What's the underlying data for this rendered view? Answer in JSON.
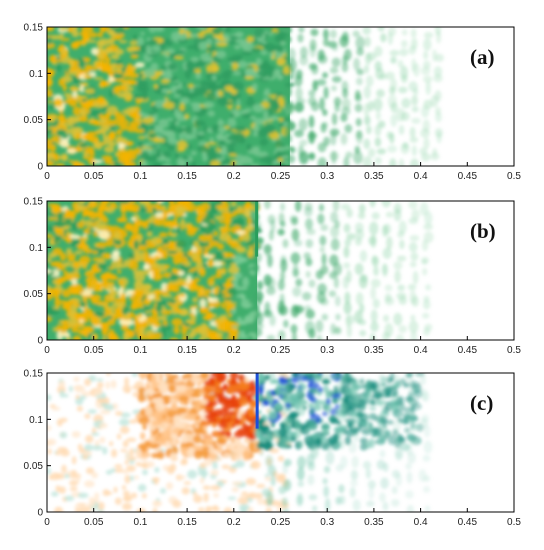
{
  "chart_data": [
    {
      "type": "heatmap",
      "panel_label": "(a)",
      "xlim": [
        0,
        0.5
      ],
      "ylim": [
        0,
        0.15
      ],
      "x_ticks": [
        "0",
        "0.05",
        "0.1",
        "0.15",
        "0.2",
        "0.25",
        "0.3",
        "0.35",
        "0.4",
        "0.45",
        "0.5"
      ],
      "y_ticks": [
        "0",
        "0.05",
        "0.1",
        "0.15"
      ],
      "grid": false,
      "field": {
        "orange_zone_x": [
          0,
          0.1
        ],
        "dense_green_x": [
          0,
          0.26
        ],
        "wave_fade_x": [
          0.26,
          0.43
        ],
        "front_x": 0.43
      },
      "colors": [
        "#f5b800",
        "#2aa35e",
        "#d7efe0"
      ]
    },
    {
      "type": "heatmap",
      "panel_label": "(b)",
      "xlim": [
        0,
        0.5
      ],
      "ylim": [
        0,
        0.15
      ],
      "x_ticks": [
        "0",
        "0.05",
        "0.1",
        "0.15",
        "0.2",
        "0.25",
        "0.3",
        "0.35",
        "0.4",
        "0.45",
        "0.5"
      ],
      "y_ticks": [
        "0",
        "0.05",
        "0.1",
        "0.15"
      ],
      "grid": false,
      "field": {
        "orange_zone_x": [
          0,
          0.22
        ],
        "interface_x": 0.225,
        "interface_top_y": 0.09,
        "wave_fade_x": [
          0.225,
          0.42
        ],
        "front_x": 0.42
      },
      "colors": [
        "#f5b800",
        "#2aa35e",
        "#d7efe0"
      ]
    },
    {
      "type": "heatmap",
      "panel_label": "(c)",
      "xlim": [
        0,
        0.5
      ],
      "ylim": [
        0,
        0.15
      ],
      "x_ticks": [
        "0",
        "0.05",
        "0.1",
        "0.15",
        "0.2",
        "0.25",
        "0.3",
        "0.35",
        "0.4",
        "0.45",
        "0.5"
      ],
      "y_ticks": [
        "0",
        "0.05",
        "0.1",
        "0.15"
      ],
      "grid": false,
      "field": {
        "positive_zone_x": [
          0.1,
          0.225
        ],
        "negative_zone_x": [
          0.225,
          0.4
        ],
        "interface_x": 0.225,
        "interface_bottom_y": 0.09,
        "front_x": 0.42
      },
      "colors": [
        "#e8420a",
        "#ffd9b0",
        "#128a7a",
        "#1d4fd8"
      ]
    }
  ]
}
